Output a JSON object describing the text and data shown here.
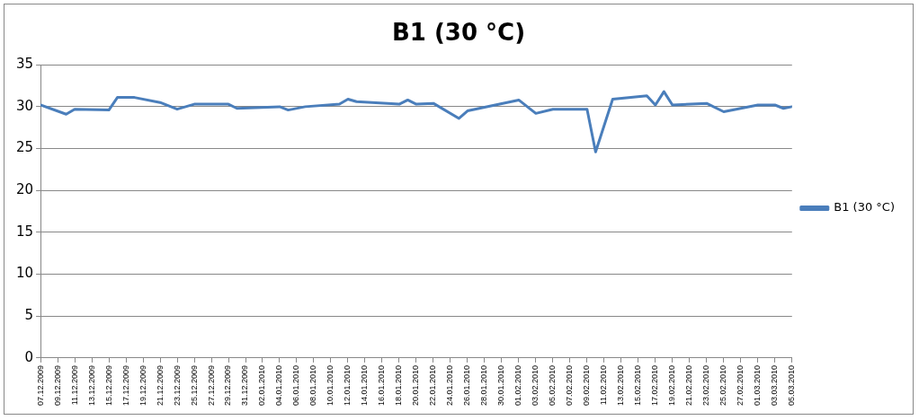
{
  "chart_data": {
    "type": "line",
    "title": "B1 (30 °C)",
    "x": [
      "2009-12-07",
      "2009-12-10",
      "2009-12-11",
      "2009-12-15",
      "2009-12-16",
      "2009-12-18",
      "2009-12-21",
      "2009-12-23",
      "2009-12-25",
      "2009-12-29",
      "2009-12-30",
      "2010-01-04",
      "2010-01-05",
      "2010-01-07",
      "2010-01-11",
      "2010-01-12",
      "2010-01-13",
      "2010-01-18",
      "2010-01-19",
      "2010-01-20",
      "2010-01-22",
      "2010-01-25",
      "2010-01-26",
      "2010-02-01",
      "2010-02-03",
      "2010-02-05",
      "2010-02-09",
      "2010-02-10",
      "2010-02-12",
      "2010-02-16",
      "2010-02-17",
      "2010-02-18",
      "2010-02-19",
      "2010-02-23",
      "2010-02-25",
      "2010-03-01",
      "2010-03-03",
      "2010-03-04",
      "2010-03-05"
    ],
    "series": [
      {
        "name": "B1 (30 °C)",
        "color": "#4a7ebb",
        "values": [
          30.2,
          29.1,
          29.7,
          29.6,
          31.1,
          31.1,
          30.5,
          29.7,
          30.3,
          30.3,
          29.8,
          30.0,
          29.6,
          30.0,
          30.3,
          30.9,
          30.6,
          30.3,
          30.8,
          30.3,
          30.4,
          28.6,
          29.5,
          30.8,
          29.2,
          29.7,
          29.7,
          24.6,
          30.9,
          31.3,
          30.2,
          31.8,
          30.2,
          30.4,
          29.4,
          30.2,
          30.2,
          29.8,
          30.0
        ]
      }
    ],
    "xlim": [
      "2009-12-07",
      "2010-03-05"
    ],
    "xticks": [
      {
        "value": "2009-12-07",
        "label": "07.12.2009"
      },
      {
        "value": "2009-12-09",
        "label": "09.12.2009"
      },
      {
        "value": "2009-12-11",
        "label": "11.12.2009"
      },
      {
        "value": "2009-12-13",
        "label": "13.12.2009"
      },
      {
        "value": "2009-12-15",
        "label": "15.12.2009"
      },
      {
        "value": "2009-12-17",
        "label": "17.12.2009"
      },
      {
        "value": "2009-12-19",
        "label": "19.12.2009"
      },
      {
        "value": "2009-12-21",
        "label": "21.12.2009"
      },
      {
        "value": "2009-12-23",
        "label": "23.12.2009"
      },
      {
        "value": "2009-12-25",
        "label": "25.12.2009"
      },
      {
        "value": "2009-12-27",
        "label": "27.12.2009"
      },
      {
        "value": "2009-12-29",
        "label": "29.12.2009"
      },
      {
        "value": "2009-12-31",
        "label": "31.12.2009"
      },
      {
        "value": "2010-01-02",
        "label": "02.01.2010"
      },
      {
        "value": "2010-01-04",
        "label": "04.01.2010"
      },
      {
        "value": "2010-01-06",
        "label": "06.01.2010"
      },
      {
        "value": "2010-01-08",
        "label": "08.01.2010"
      },
      {
        "value": "2010-01-10",
        "label": "10.01.2010"
      },
      {
        "value": "2010-01-12",
        "label": "12.01.2010"
      },
      {
        "value": "2010-01-14",
        "label": "14.01.2010"
      },
      {
        "value": "2010-01-16",
        "label": "16.01.2010"
      },
      {
        "value": "2010-01-18",
        "label": "18.01.2010"
      },
      {
        "value": "2010-01-20",
        "label": "20.01.2010"
      },
      {
        "value": "2010-01-22",
        "label": "22.01.2010"
      },
      {
        "value": "2010-01-24",
        "label": "24.01.2010"
      },
      {
        "value": "2010-01-26",
        "label": "26.01.2010"
      },
      {
        "value": "2010-01-28",
        "label": "28.01.2010"
      },
      {
        "value": "2010-01-30",
        "label": "30.01.2010"
      },
      {
        "value": "2010-02-01",
        "label": "01.02.2010"
      },
      {
        "value": "2010-02-03",
        "label": "03.02.2010"
      },
      {
        "value": "2010-02-05",
        "label": "05.02.2010"
      },
      {
        "value": "2010-02-07",
        "label": "07.02.2010"
      },
      {
        "value": "2010-02-09",
        "label": "09.02.2010"
      },
      {
        "value": "2010-02-11",
        "label": "11.02.2010"
      },
      {
        "value": "2010-02-13",
        "label": "13.02.2010"
      },
      {
        "value": "2010-02-15",
        "label": "15.02.2010"
      },
      {
        "value": "2010-02-17",
        "label": "17.02.2010"
      },
      {
        "value": "2010-02-19",
        "label": "19.02.2010"
      },
      {
        "value": "2010-02-21",
        "label": "21.02.2010"
      },
      {
        "value": "2010-02-23",
        "label": "23.02.2010"
      },
      {
        "value": "2010-02-25",
        "label": "25.02.2010"
      },
      {
        "value": "2010-02-27",
        "label": "27.02.2010"
      },
      {
        "value": "2010-03-01",
        "label": "01.03.2010"
      },
      {
        "value": "2010-03-03",
        "label": "03.03.2010"
      },
      {
        "value": "2010-03-05",
        "label": "05.03.2010"
      }
    ],
    "ylim": [
      0,
      35
    ],
    "yticks": [
      0,
      5,
      10,
      15,
      20,
      25,
      30,
      35
    ],
    "grid": "y",
    "legend": "right",
    "marker": "none",
    "line_style": "solid"
  }
}
